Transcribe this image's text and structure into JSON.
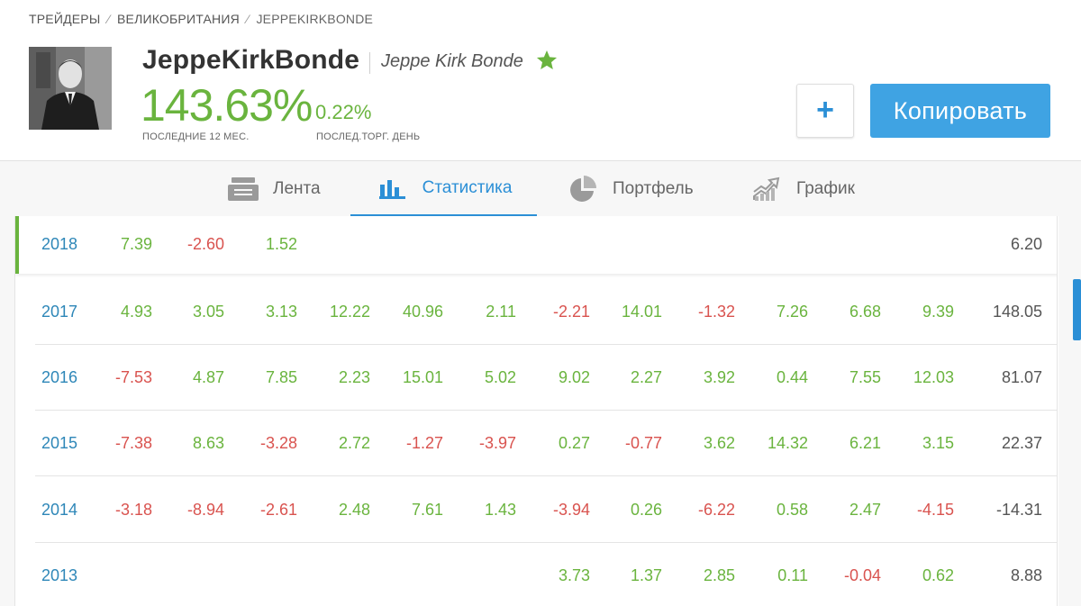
{
  "breadcrumb": {
    "items": [
      "ТРЕЙДЕРЫ",
      "ВЕЛИКОБРИТАНИЯ",
      "JEPPEKIRKBONDE"
    ]
  },
  "profile": {
    "username": "JeppeKirkBonde",
    "full_name": "Jeppe Kirk Bonde",
    "gain_12m": "143.63%",
    "gain_12m_label": "ПОСЛЕДНИЕ 12 МЕС.",
    "gain_day": "0.22%",
    "gain_day_label": "ПОСЛЕД.ТОРГ. ДЕНЬ",
    "star_icon": "star-icon"
  },
  "actions": {
    "plus_label": "+",
    "copy_label": "Копировать"
  },
  "tabs": [
    {
      "label": "Лента",
      "icon": "feed-icon"
    },
    {
      "label": "Статистика",
      "icon": "bar-chart-icon",
      "active": true
    },
    {
      "label": "Портфель",
      "icon": "pie-chart-icon"
    },
    {
      "label": "График",
      "icon": "trend-chart-icon"
    }
  ],
  "colors": {
    "positive": "#6ab43e",
    "negative": "#d9534f",
    "accent": "#2b8fd6",
    "year": "#2e87b8"
  },
  "stats": {
    "rows": [
      {
        "year": "2018",
        "months": [
          "7.39",
          "-2.60",
          "1.52",
          "",
          "",
          "",
          "",
          "",
          "",
          "",
          "",
          ""
        ],
        "total": "6.20"
      },
      {
        "year": "2017",
        "months": [
          "4.93",
          "3.05",
          "3.13",
          "12.22",
          "40.96",
          "2.11",
          "-2.21",
          "14.01",
          "-1.32",
          "7.26",
          "6.68",
          "9.39"
        ],
        "total": "148.05"
      },
      {
        "year": "2016",
        "months": [
          "-7.53",
          "4.87",
          "7.85",
          "2.23",
          "15.01",
          "5.02",
          "9.02",
          "2.27",
          "3.92",
          "0.44",
          "7.55",
          "12.03"
        ],
        "total": "81.07"
      },
      {
        "year": "2015",
        "months": [
          "-7.38",
          "8.63",
          "-3.28",
          "2.72",
          "-1.27",
          "-3.97",
          "0.27",
          "-0.77",
          "3.62",
          "14.32",
          "6.21",
          "3.15"
        ],
        "total": "22.37"
      },
      {
        "year": "2014",
        "months": [
          "-3.18",
          "-8.94",
          "-2.61",
          "2.48",
          "7.61",
          "1.43",
          "-3.94",
          "0.26",
          "-6.22",
          "0.58",
          "2.47",
          "-4.15"
        ],
        "total": "-14.31"
      },
      {
        "year": "2013",
        "months": [
          "",
          "",
          "",
          "",
          "",
          "",
          "3.73",
          "1.37",
          "2.85",
          "0.11",
          "-0.04",
          "0.62"
        ],
        "total": "8.88"
      }
    ]
  }
}
